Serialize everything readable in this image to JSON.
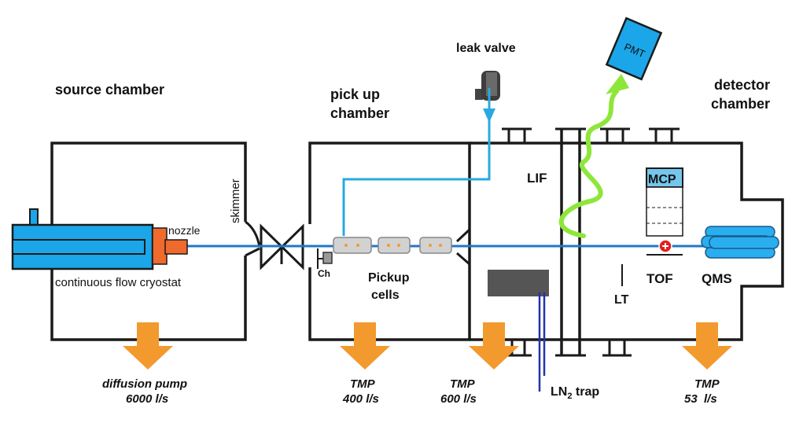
{
  "labels": {
    "source_chamber": "source chamber",
    "pickup_chamber_line1": "pick up",
    "pickup_chamber_line2": "chamber",
    "detector_chamber_line1": "detector",
    "detector_chamber_line2": "chamber",
    "leak_valve": "leak valve",
    "pmt": "PMT",
    "skimmer": "skimmer",
    "nozzle": "nozzle",
    "cryostat": "continuous flow cryostat",
    "ch": "Ch",
    "pickup_cells_line1": "Pickup",
    "pickup_cells_line2": "cells",
    "lif": "LIF",
    "mcp": "MCP",
    "tof": "TOF",
    "qms": "QMS",
    "lt": "LT",
    "ln2_base": "LN",
    "ln2_sub": "2",
    "ln2_rest": " trap"
  },
  "pumps": [
    {
      "name": "diffusion pump",
      "speed": "6000 l/s"
    },
    {
      "name": "TMP",
      "speed": "400 l/s"
    },
    {
      "name": "TMP",
      "speed": "600 l/s"
    },
    {
      "name": "TMP",
      "speed": "53  l/s"
    }
  ],
  "colors": {
    "outline": "#1a1a1a",
    "beam": "#1f78c8",
    "cryostat": "#1aa6e8",
    "nozzle": "#ef6a2c",
    "pump_arrow": "#f29a2e",
    "gas_line": "#29a9e1",
    "fluorescence": "#8ee63a",
    "pmt": "#1aa6e8",
    "mcp": "#74c6ec",
    "qms": "#29aef0",
    "trap_block": "#555555",
    "ln2_line": "#2233aa"
  }
}
